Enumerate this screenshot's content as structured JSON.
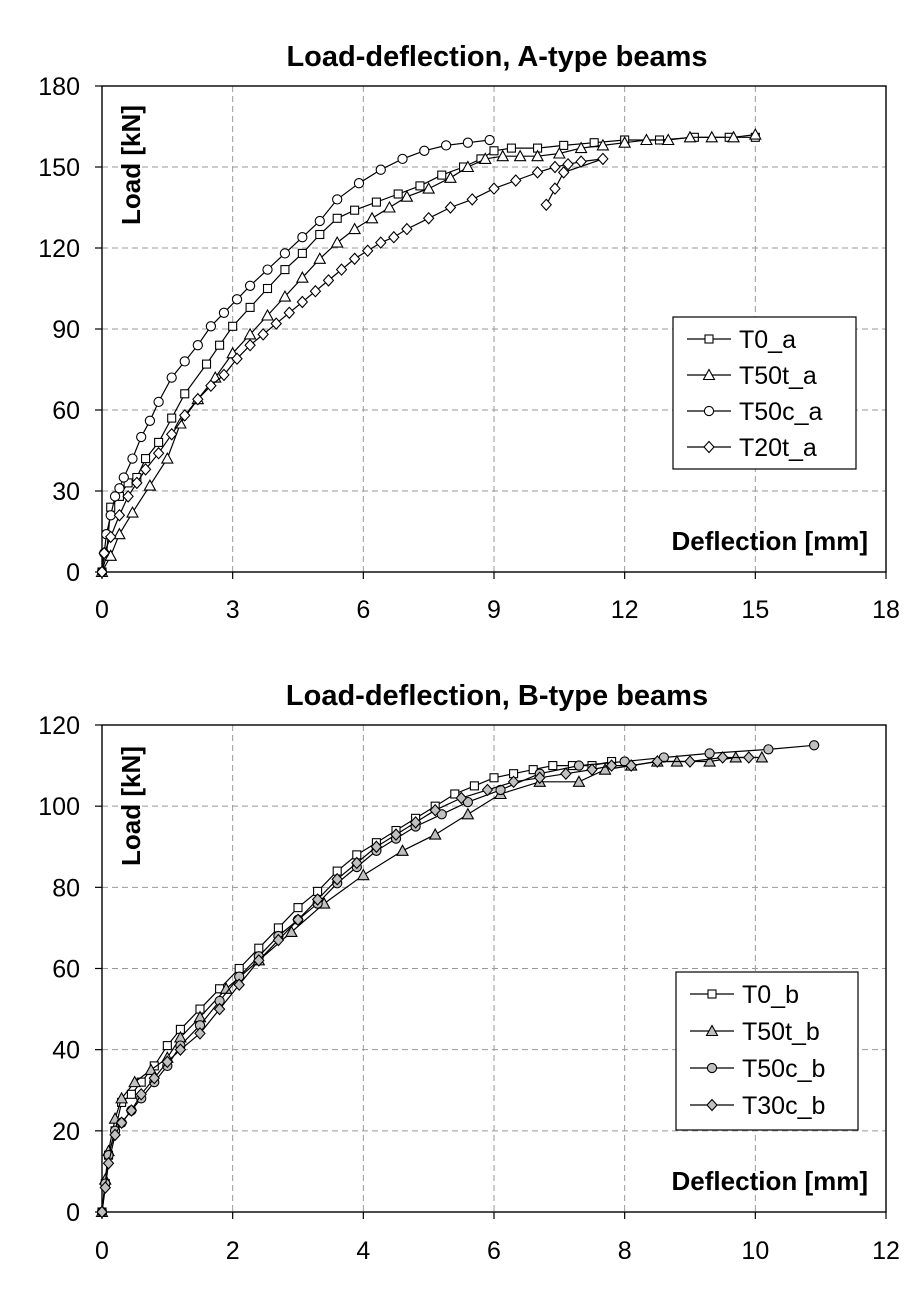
{
  "chart_data": [
    {
      "type": "line",
      "title": "Load-deflection, A-type beams",
      "xlabel": "Deflection [mm]",
      "ylabel": "Load [kN]",
      "xlim": [
        0,
        18
      ],
      "ylim": [
        0,
        180
      ],
      "xticks": [
        0,
        3,
        6,
        9,
        12,
        15,
        18
      ],
      "yticks": [
        0,
        30,
        60,
        90,
        120,
        150,
        180
      ],
      "grid": true,
      "legend_position": "right",
      "series": [
        {
          "name": "T0_a",
          "marker": "square",
          "fill": "#ffffff",
          "x": [
            0,
            0.1,
            0.2,
            0.4,
            0.6,
            0.8,
            1.0,
            1.3,
            1.6,
            1.9,
            2.4,
            2.7,
            3.0,
            3.4,
            3.8,
            4.2,
            4.6,
            5.0,
            5.4,
            5.8,
            6.3,
            6.8,
            7.3,
            7.8,
            8.3,
            8.7,
            9.0,
            9.4,
            10.0,
            10.6,
            11.3,
            12.0,
            12.8,
            13.6,
            14.4,
            15.0
          ],
          "y": [
            0,
            6,
            24,
            28,
            33,
            35,
            42,
            48,
            57,
            66,
            77,
            84,
            91,
            98,
            105,
            112,
            118,
            125,
            131,
            134,
            137,
            140,
            143,
            147,
            150,
            153,
            156,
            157,
            157,
            158,
            159,
            160,
            160,
            161,
            161,
            161
          ]
        },
        {
          "name": "T50t_a",
          "marker": "triangle",
          "fill": "#ffffff",
          "x": [
            0,
            0.2,
            0.4,
            0.7,
            1.1,
            1.5,
            1.8,
            2.2,
            2.6,
            3.0,
            3.4,
            3.8,
            4.2,
            4.6,
            5.0,
            5.4,
            5.8,
            6.2,
            6.6,
            7.0,
            7.5,
            8.0,
            8.4,
            8.8,
            9.2,
            9.6,
            10.0,
            10.5,
            11.0,
            11.5,
            12.0,
            12.5,
            13.0,
            13.5,
            14.0,
            14.5,
            15.0
          ],
          "y": [
            0,
            6,
            14,
            22,
            32,
            42,
            55,
            64,
            72,
            81,
            88,
            95,
            102,
            109,
            116,
            122,
            127,
            131,
            135,
            139,
            142,
            146,
            150,
            153,
            154,
            154,
            154,
            155,
            157,
            158,
            159,
            160,
            160,
            161,
            161,
            161,
            162
          ]
        },
        {
          "name": "T50c_a",
          "marker": "circle",
          "fill": "#ffffff",
          "x": [
            0,
            0.05,
            0.1,
            0.2,
            0.3,
            0.4,
            0.5,
            0.7,
            0.9,
            1.1,
            1.3,
            1.6,
            1.9,
            2.2,
            2.5,
            2.8,
            3.1,
            3.4,
            3.8,
            4.2,
            4.6,
            5.0,
            5.4,
            5.9,
            6.4,
            6.9,
            7.4,
            7.9,
            8.4,
            8.9
          ],
          "y": [
            0,
            7,
            14,
            21,
            28,
            31,
            35,
            42,
            50,
            56,
            63,
            72,
            78,
            84,
            91,
            96,
            101,
            106,
            112,
            118,
            124,
            130,
            138,
            144,
            149,
            153,
            156,
            158,
            159,
            160
          ]
        },
        {
          "name": "T20t_a",
          "marker": "diamond",
          "fill": "#ffffff",
          "x": [
            0,
            0.05,
            0.2,
            0.4,
            0.6,
            0.8,
            1.0,
            1.3,
            1.6,
            1.9,
            2.2,
            2.5,
            2.8,
            3.1,
            3.4,
            3.7,
            4.0,
            4.3,
            4.6,
            4.9,
            5.2,
            5.5,
            5.8,
            6.1,
            6.4,
            6.7,
            7.0,
            7.5,
            8.0,
            8.5,
            9.0,
            9.5,
            10.0,
            10.4,
            10.7,
            11.0,
            11.5,
            10.6,
            10.4,
            10.2
          ],
          "y": [
            0,
            7,
            13,
            21,
            28,
            33,
            38,
            44,
            51,
            58,
            64,
            69,
            73,
            79,
            84,
            88,
            92,
            96,
            100,
            104,
            108,
            112,
            116,
            119,
            122,
            124,
            127,
            131,
            135,
            138,
            142,
            145,
            148,
            150,
            151,
            152,
            153,
            148,
            142,
            136
          ]
        }
      ]
    },
    {
      "type": "line",
      "title": "Load-deflection, B-type beams",
      "xlabel": "Deflection [mm]",
      "ylabel": "Load [kN]",
      "xlim": [
        0,
        12
      ],
      "ylim": [
        0,
        120
      ],
      "xticks": [
        0,
        2,
        4,
        6,
        8,
        10,
        12
      ],
      "yticks": [
        0,
        20,
        40,
        60,
        80,
        100,
        120
      ],
      "grid": true,
      "legend_position": "bottom-right",
      "series": [
        {
          "name": "T0_b",
          "marker": "square",
          "fill": "#ffffff",
          "x": [
            0,
            0.05,
            0.1,
            0.2,
            0.3,
            0.45,
            0.6,
            0.8,
            1.0,
            1.2,
            1.5,
            1.8,
            2.1,
            2.4,
            2.7,
            3.0,
            3.3,
            3.6,
            3.9,
            4.2,
            4.5,
            4.8,
            5.1,
            5.4,
            5.7,
            6.0,
            6.3,
            6.6,
            6.9,
            7.2,
            7.5,
            7.8
          ],
          "y": [
            0,
            7,
            14,
            20,
            27,
            29,
            32,
            36,
            41,
            45,
            50,
            55,
            60,
            65,
            70,
            75,
            79,
            84,
            88,
            91,
            94,
            97,
            100,
            103,
            105,
            107,
            108,
            109,
            110,
            110,
            110,
            111
          ]
        },
        {
          "name": "T50t_b",
          "marker": "triangle",
          "fill": "#c0c0c0",
          "x": [
            0,
            0.05,
            0.1,
            0.2,
            0.3,
            0.5,
            0.75,
            1.0,
            1.2,
            1.5,
            1.9,
            2.4,
            2.9,
            3.4,
            4.0,
            4.6,
            5.1,
            5.6,
            6.1,
            6.7,
            7.3,
            7.7,
            8.1,
            8.5,
            8.8,
            9.3,
            9.7,
            10.1
          ],
          "y": [
            0,
            8,
            15,
            23,
            28,
            32,
            35,
            38,
            43,
            48,
            55,
            62,
            69,
            76,
            83,
            89,
            93,
            98,
            103,
            106,
            106,
            109,
            110,
            111,
            111,
            111,
            112,
            112
          ]
        },
        {
          "name": "T50c_b",
          "marker": "circle",
          "fill": "#c0c0c0",
          "x": [
            0,
            0.05,
            0.1,
            0.2,
            0.3,
            0.45,
            0.6,
            0.8,
            1.0,
            1.2,
            1.5,
            1.8,
            2.1,
            2.4,
            2.7,
            3.0,
            3.3,
            3.6,
            3.9,
            4.2,
            4.5,
            4.8,
            5.2,
            5.6,
            6.1,
            6.7,
            7.3,
            8.0,
            8.6,
            9.3,
            10.2,
            10.9
          ],
          "y": [
            0,
            7,
            14,
            20,
            22,
            25,
            28,
            32,
            36,
            41,
            46,
            52,
            58,
            63,
            68,
            72,
            76,
            81,
            85,
            89,
            92,
            95,
            98,
            101,
            104,
            108,
            110,
            111,
            112,
            113,
            114,
            115
          ]
        },
        {
          "name": "T30c_b",
          "marker": "diamond",
          "fill": "#c0c0c0",
          "x": [
            0,
            0.05,
            0.1,
            0.2,
            0.3,
            0.45,
            0.6,
            0.8,
            1.0,
            1.2,
            1.5,
            1.8,
            2.1,
            2.4,
            2.7,
            3.0,
            3.3,
            3.6,
            3.9,
            4.2,
            4.5,
            4.8,
            5.1,
            5.5,
            5.9,
            6.3,
            6.7,
            7.1,
            7.5,
            7.8,
            8.1,
            8.5,
            9.0,
            9.5,
            9.9
          ],
          "y": [
            0,
            6,
            12,
            19,
            22,
            25,
            29,
            33,
            37,
            40,
            44,
            50,
            56,
            62,
            67,
            72,
            77,
            82,
            86,
            90,
            93,
            96,
            99,
            102,
            104,
            106,
            107,
            108,
            109,
            110,
            110,
            111,
            111,
            112,
            112
          ]
        }
      ]
    }
  ]
}
